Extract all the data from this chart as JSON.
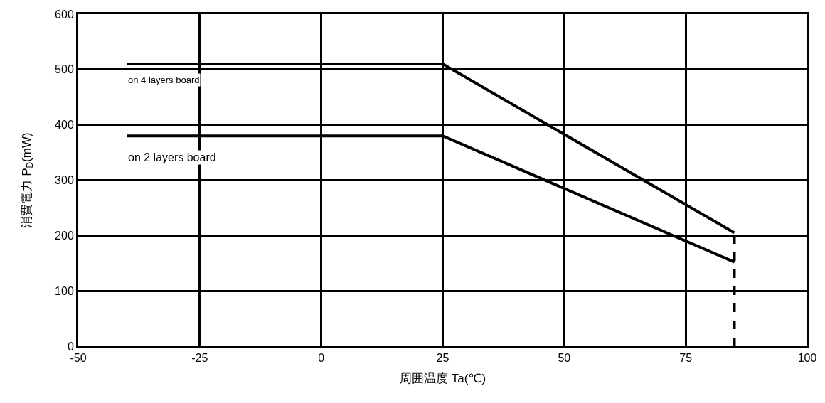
{
  "chart_data": {
    "type": "line",
    "xlabel": "周囲温度 Ta(℃)",
    "ylabel": "消費電力 P$_{D}$(mW)",
    "series": [
      {
        "name": "on 4 layers board",
        "color": "#000000",
        "x": [
          -40,
          25,
          85
        ],
        "values": [
          510,
          510,
          205
        ]
      },
      {
        "name": "on 2 layers board",
        "color": "#000000",
        "x": [
          -40,
          25,
          85
        ],
        "values": [
          380,
          380,
          152
        ]
      },
      {
        "color": "#000000",
        "x": [
          85,
          85
        ],
        "values": [
          0,
          205
        ],
        "line_style": "dashed"
      }
    ],
    "xlim": [
      -50,
      100
    ],
    "xticks": [
      -50,
      -25,
      0,
      25,
      50,
      75,
      100
    ],
    "ylim": [
      0,
      600
    ],
    "yticks": [
      0,
      100,
      200,
      300,
      400,
      500,
      600
    ],
    "grid": true,
    "legend": false,
    "marker": "none",
    "line_style": "solid"
  }
}
